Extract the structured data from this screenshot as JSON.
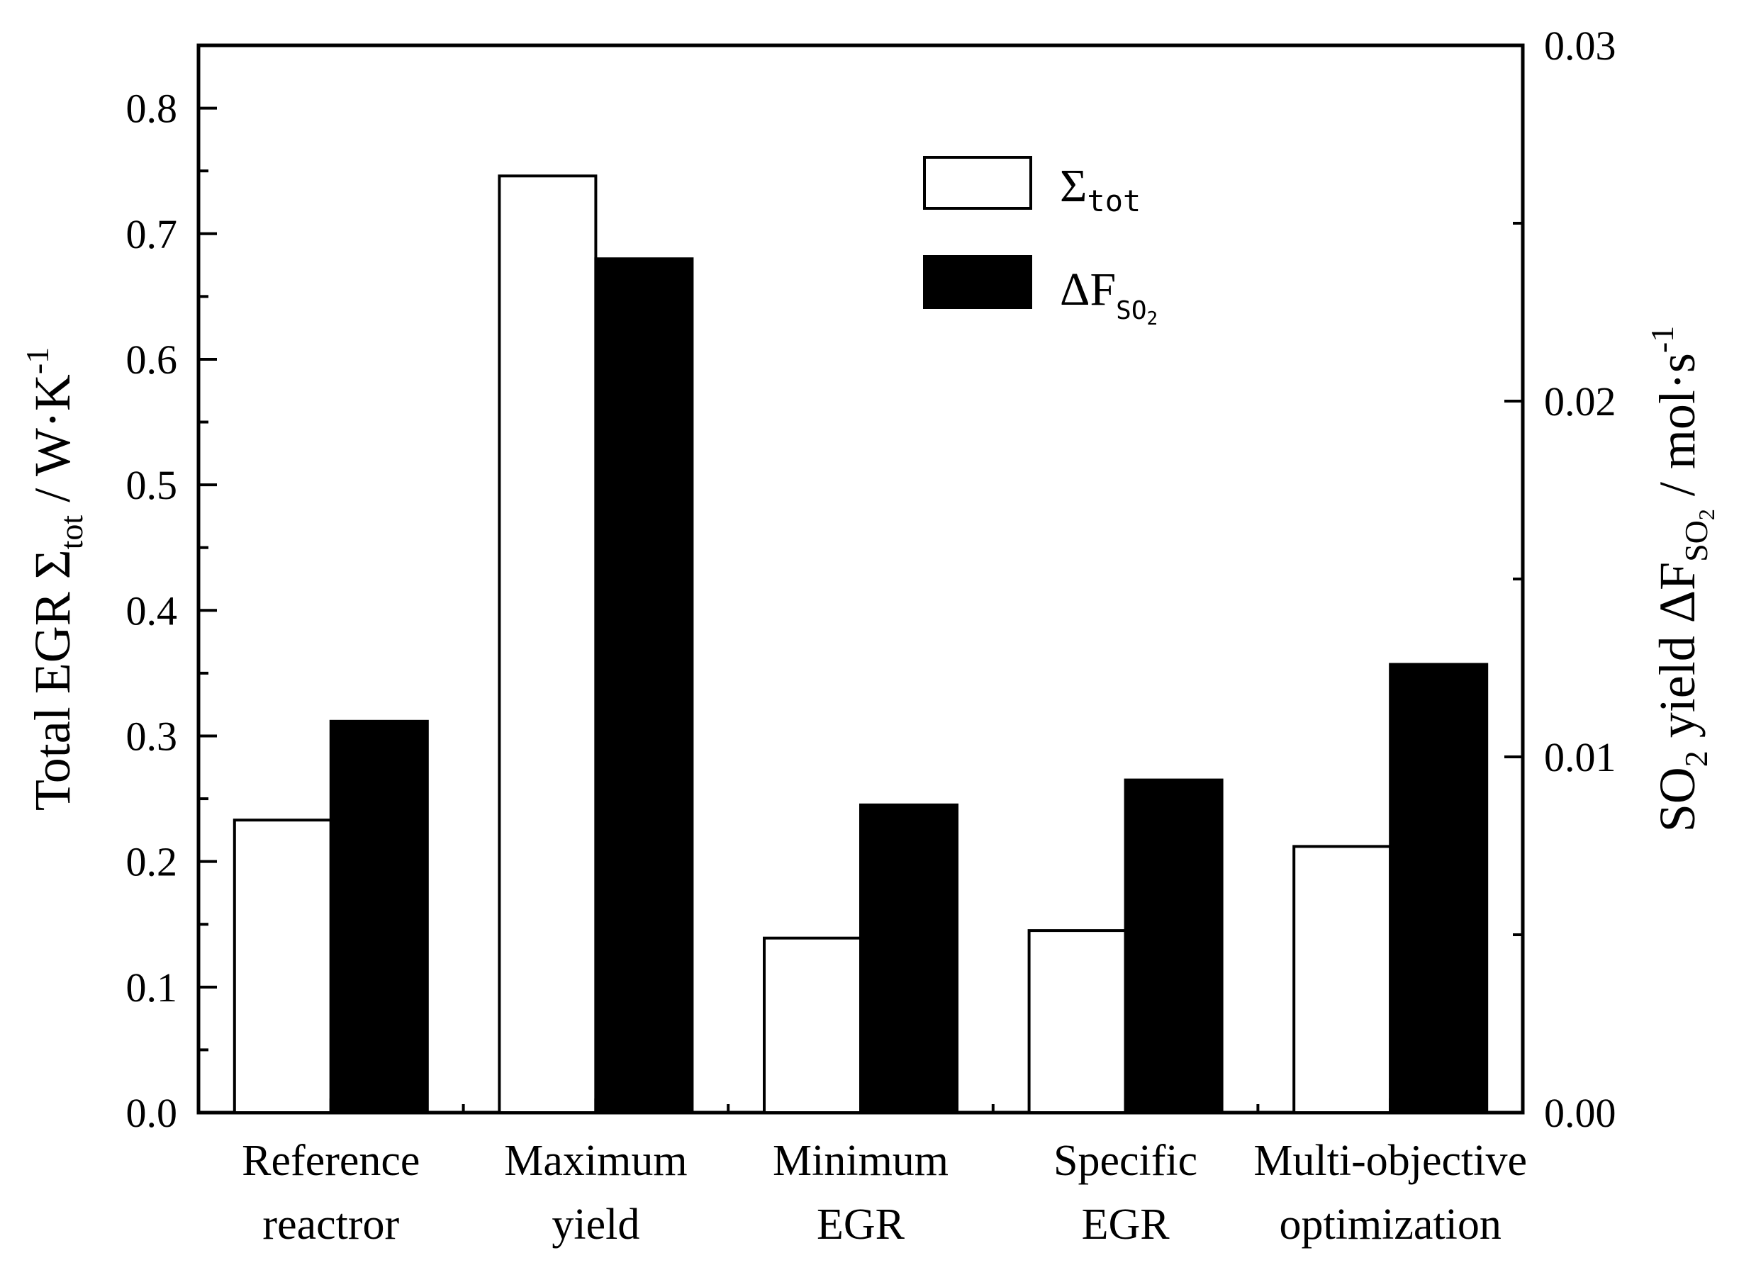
{
  "chart_data": {
    "type": "bar",
    "categories": [
      [
        "Reference",
        "reactror"
      ],
      [
        "Maximum",
        "yield"
      ],
      [
        "Minimum",
        "EGR"
      ],
      [
        "Specific",
        "EGR"
      ],
      [
        "Multi-objective",
        "optimization"
      ]
    ],
    "series": [
      {
        "name": "Σtot",
        "axis": "left",
        "fill": "#ffffff",
        "values": [
          0.233,
          0.746,
          0.139,
          0.145,
          0.212
        ]
      },
      {
        "name": "ΔF_SO2",
        "axis": "right",
        "fill": "#000000",
        "values": [
          0.011,
          0.024,
          0.00865,
          0.00935,
          0.0126
        ]
      }
    ],
    "left_axis": {
      "ylim": [
        0,
        0.85
      ],
      "major_ticks": [
        0.0,
        0.1,
        0.2,
        0.3,
        0.4,
        0.5,
        0.6,
        0.7,
        0.8
      ],
      "tick_labels": [
        "0.0",
        "0.1",
        "0.2",
        "0.3",
        "0.4",
        "0.5",
        "0.6",
        "0.7",
        "0.8"
      ],
      "title": {
        "pre": "Total EGR Σ",
        "sub": "tot",
        "mid": " / W·K",
        "sup": "-1"
      }
    },
    "right_axis": {
      "ylim": [
        0,
        0.03
      ],
      "major_ticks": [
        0.0,
        0.01,
        0.02,
        0.03
      ],
      "tick_labels": [
        "0.00",
        "0.01",
        "0.02",
        "0.03"
      ],
      "title": {
        "pre": "SO",
        "pre_sub": "2",
        "mid": " yield ΔF",
        "sub": "SO",
        "sub_sub": "2",
        "post": " / mol·s",
        "sup": "-1"
      }
    },
    "legend": {
      "position": "top-center",
      "entries": [
        {
          "main": "Σ",
          "sub": "tot"
        },
        {
          "main": "ΔF",
          "sub": "SO",
          "subsub": "2"
        }
      ]
    }
  }
}
